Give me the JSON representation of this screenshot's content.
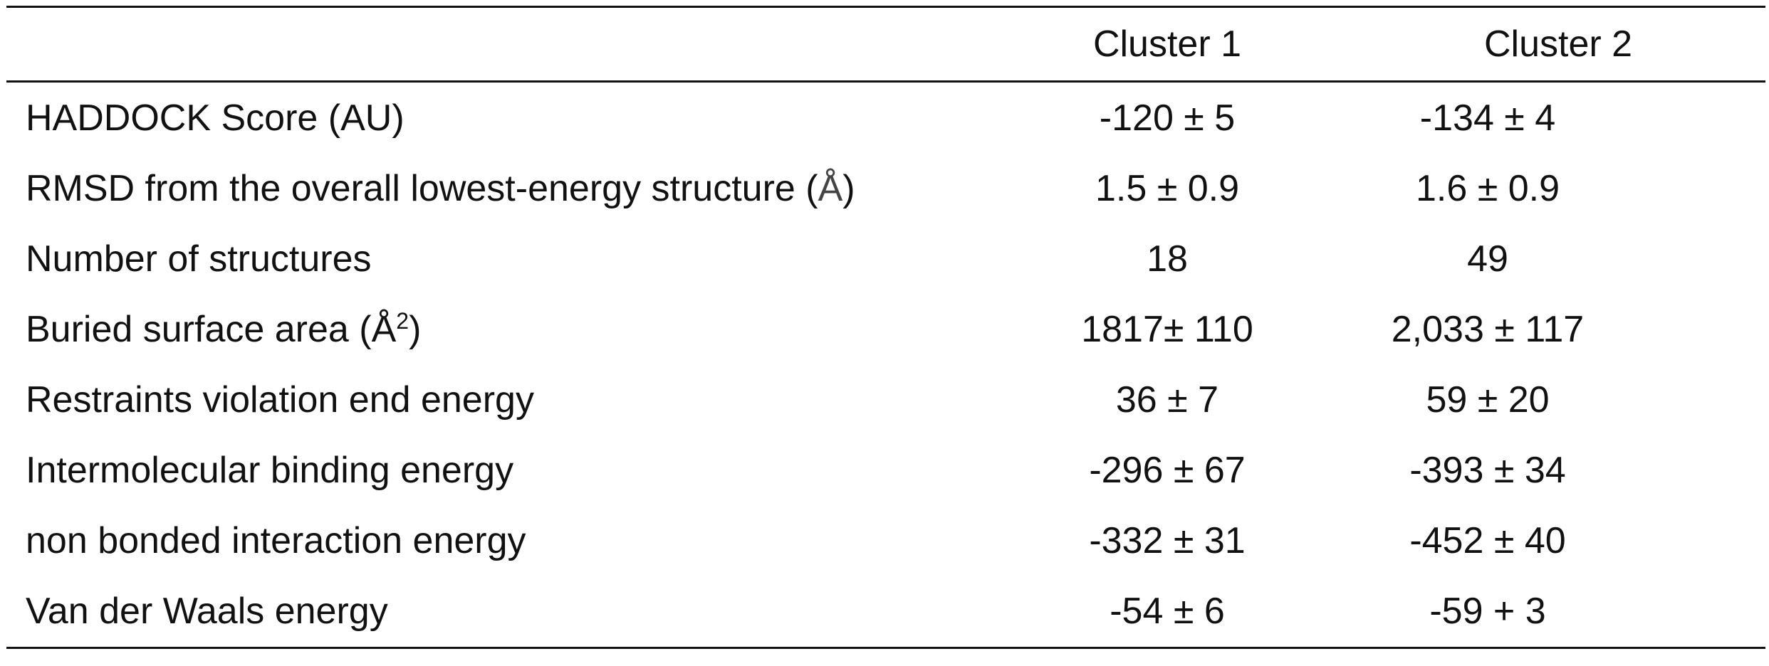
{
  "table": {
    "headers": [
      "",
      "Cluster 1",
      "Cluster 2"
    ],
    "rows": [
      {
        "label": "HADDOCK Score (AU)",
        "cluster1": "-120 ± 5",
        "cluster2": "-134 ± 4"
      },
      {
        "label_main": "RMSD from the overall lowest-energy structure (",
        "label_unit": "Å",
        "label_end": ")",
        "cluster1": "1.5 ± 0.9",
        "cluster2": "1.6 ± 0.9"
      },
      {
        "label": "Number of structures",
        "cluster1": "18",
        "cluster2": "49"
      },
      {
        "label_main": "Buried surface area (Å",
        "label_sup": "2",
        "label_end": ")",
        "cluster1": "1817± 110",
        "cluster2": "2,033 ± 117"
      },
      {
        "label": "Restraints violation end energy",
        "cluster1": "36 ± 7",
        "cluster2": "59 ± 20"
      },
      {
        "label": "Intermolecular binding energy",
        "cluster1": "-296 ± 67",
        "cluster2": "-393 ± 34"
      },
      {
        "label": "non bonded interaction energy",
        "cluster1": "-332 ± 31",
        "cluster2": "-452 ± 40"
      },
      {
        "label": "Van der Waals energy",
        "cluster1": "-54 ± 6",
        "cluster2": "-59 + 3"
      }
    ]
  }
}
